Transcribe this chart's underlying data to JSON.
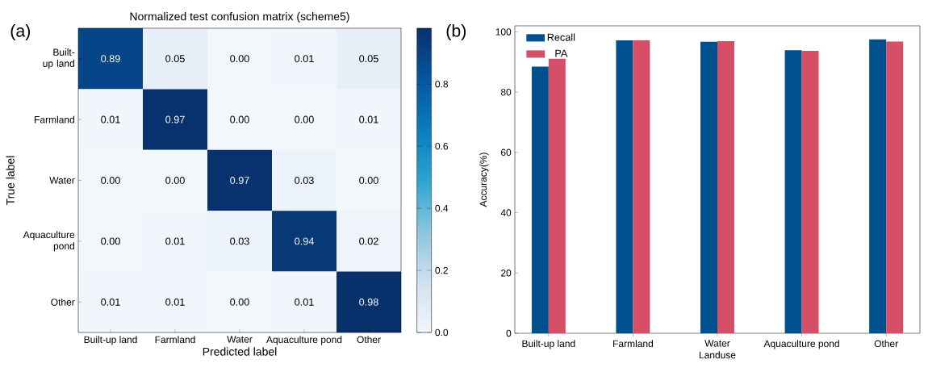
{
  "chart_data": [
    {
      "type": "heatmap",
      "title": "Normalized test confusion matrix (scheme5)",
      "xlabel": "Predicted label",
      "ylabel": "True label",
      "categories": [
        "Built-up land",
        "Farmland",
        "Water",
        "Aquaculture pond",
        "Other"
      ],
      "y_categories": [
        "Built-up land",
        "Farmland",
        "Water",
        "Aquaculture pond",
        "Other"
      ],
      "cells": [
        [
          0.89,
          0.05,
          0.0,
          0.01,
          0.05
        ],
        [
          0.01,
          0.97,
          0.0,
          0.0,
          0.01
        ],
        [
          0.0,
          0.0,
          0.97,
          0.03,
          0.0
        ],
        [
          0.0,
          0.01,
          0.03,
          0.94,
          0.02
        ],
        [
          0.01,
          0.01,
          0.0,
          0.01,
          0.98
        ]
      ],
      "cell_labels": [
        [
          "0.89",
          "0.05",
          "0.00",
          "0.01",
          "0.05"
        ],
        [
          "0.01",
          "0.97",
          "0.00",
          "0.00",
          "0.01"
        ],
        [
          "0.00",
          "0.00",
          "0.97",
          "0.03",
          "0.00"
        ],
        [
          "0.00",
          "0.01",
          "0.03",
          "0.94",
          "0.02"
        ],
        [
          "0.01",
          "0.01",
          "0.00",
          "0.01",
          "0.98"
        ]
      ],
      "clim": [
        0,
        0.98
      ],
      "cticks": [
        {
          "value": 0,
          "label": "0.0"
        },
        {
          "value": 0.2,
          "label": "0.2"
        },
        {
          "value": 0.4,
          "label": "0.4"
        },
        {
          "value": 0.6,
          "label": "0.6"
        },
        {
          "value": 0.8,
          "label": "0.8"
        }
      ],
      "annotations": [
        "(a)"
      ]
    },
    {
      "type": "bar",
      "xlabel": "Landuse",
      "ylabel": "Accuracy(%)",
      "categories": [
        "Built-up land",
        "Farmland",
        "Water",
        "Aquaculture pond",
        "Other"
      ],
      "series": [
        {
          "name": "Recall",
          "color": "#00508e",
          "values": [
            88.5,
            97.2,
            96.7,
            93.9,
            97.5
          ]
        },
        {
          "name": "PA",
          "color": "#d55067",
          "values": [
            91.1,
            97.2,
            96.9,
            93.7,
            96.8
          ]
        }
      ],
      "ylim": [
        0,
        102
      ],
      "yticks": [
        0,
        20,
        40,
        60,
        80,
        100
      ],
      "legend": "top left",
      "annotations": [
        "(b)"
      ]
    }
  ]
}
